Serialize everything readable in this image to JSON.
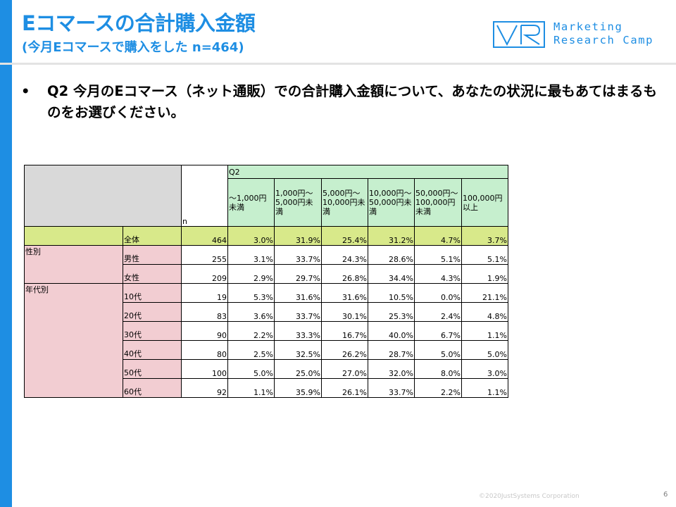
{
  "header": {
    "title": "Eコマースの合計購入金額",
    "subtitle": "(今月Eコマースで購入をした n=464)"
  },
  "logo": {
    "line1": "Marketing",
    "line2": "Research Camp"
  },
  "question": {
    "bullet": "•",
    "text": "Q2 今月のEコマース（ネット通販）での合計購入金額について、あなたの状況に最もあてはまるものをお選びください。"
  },
  "table": {
    "question_label": "Q2",
    "n_label": "n",
    "columns": [
      "～1,000円未満",
      "1,000円～5,000円未満",
      "5,000円～10,000円未満",
      "10,000円～50,000円未満",
      "50,000円～100,000円未満",
      "100,000円以上"
    ],
    "total": {
      "label": "全体",
      "n": "464",
      "values": [
        "3.0%",
        "31.9%",
        "25.4%",
        "31.2%",
        "4.7%",
        "3.7%"
      ]
    },
    "groups": [
      {
        "label": "性別",
        "rows": [
          {
            "label": "男性",
            "n": "255",
            "values": [
              "3.1%",
              "33.7%",
              "24.3%",
              "28.6%",
              "5.1%",
              "5.1%"
            ]
          },
          {
            "label": "女性",
            "n": "209",
            "values": [
              "2.9%",
              "29.7%",
              "26.8%",
              "34.4%",
              "4.3%",
              "1.9%"
            ]
          }
        ]
      },
      {
        "label": "年代別",
        "rows": [
          {
            "label": "10代",
            "n": "19",
            "values": [
              "5.3%",
              "31.6%",
              "31.6%",
              "10.5%",
              "0.0%",
              "21.1%"
            ]
          },
          {
            "label": "20代",
            "n": "83",
            "values": [
              "3.6%",
              "33.7%",
              "30.1%",
              "25.3%",
              "2.4%",
              "4.8%"
            ]
          },
          {
            "label": "30代",
            "n": "90",
            "values": [
              "2.2%",
              "33.3%",
              "16.7%",
              "40.0%",
              "6.7%",
              "1.1%"
            ]
          },
          {
            "label": "40代",
            "n": "80",
            "values": [
              "2.5%",
              "32.5%",
              "26.2%",
              "28.7%",
              "5.0%",
              "5.0%"
            ]
          },
          {
            "label": "50代",
            "n": "100",
            "values": [
              "5.0%",
              "25.0%",
              "27.0%",
              "32.0%",
              "8.0%",
              "3.0%"
            ]
          },
          {
            "label": "60代",
            "n": "92",
            "values": [
              "1.1%",
              "35.9%",
              "26.1%",
              "33.7%",
              "2.2%",
              "1.1%"
            ]
          }
        ]
      }
    ]
  },
  "footer": {
    "copyright": "©2020JustSystems Corporation",
    "page": "6"
  },
  "colors": {
    "accent": "#1e8ee3",
    "header_green": "#c6efce",
    "total_row": "#d8e98a",
    "category_pink": "#f2cdd2",
    "corner_gray": "#d9d9d9"
  }
}
